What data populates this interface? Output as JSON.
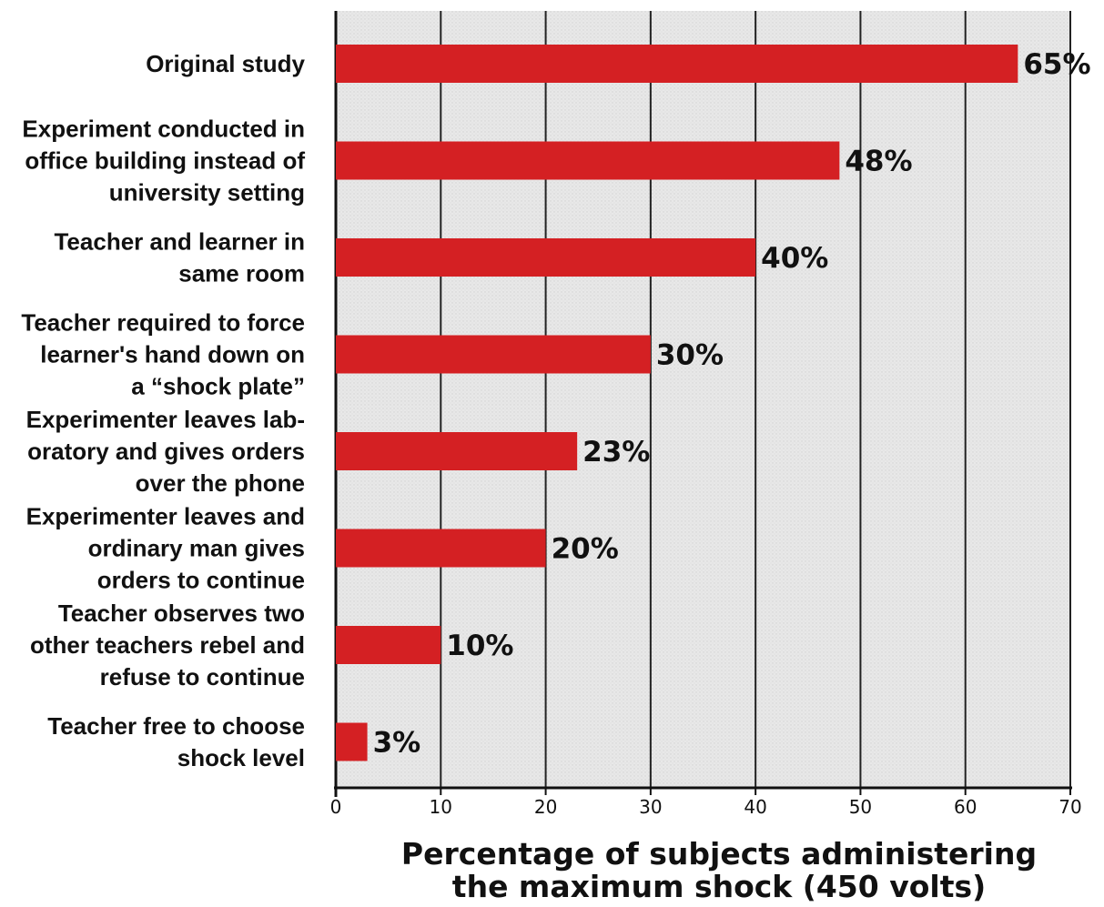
{
  "chart_data": {
    "type": "bar",
    "orientation": "horizontal",
    "title": "",
    "categories": [
      [
        "Original study"
      ],
      [
        "Experiment conducted in",
        "office building instead of",
        "university setting"
      ],
      [
        "Teacher and learner in",
        "same room"
      ],
      [
        "Teacher required to force",
        "learner's hand down on",
        "a “shock plate”"
      ],
      [
        "Experimenter leaves lab-",
        "oratory and gives orders",
        "over the phone"
      ],
      [
        "Experimenter leaves and",
        "ordinary man gives",
        "orders to continue"
      ],
      [
        "Teacher observes two",
        "other teachers rebel and",
        "refuse to continue"
      ],
      [
        "Teacher free to choose",
        "shock level"
      ]
    ],
    "values": [
      65,
      48,
      40,
      30,
      23,
      20,
      10,
      3
    ],
    "value_labels": [
      "65%",
      "48%",
      "40%",
      "30%",
      "23%",
      "20%",
      "10%",
      "3%"
    ],
    "xlabel": [
      "Percentage of subjects administering",
      "the maximum shock (450 volts)"
    ],
    "xlim": [
      0,
      70
    ],
    "xticks": [
      0,
      10,
      20,
      30,
      40,
      50,
      60,
      70
    ],
    "grid": true,
    "colors": {
      "bar": "#d42023",
      "plot_background": "#e6e6e6",
      "grid": "#222222",
      "text": "#111111"
    }
  }
}
